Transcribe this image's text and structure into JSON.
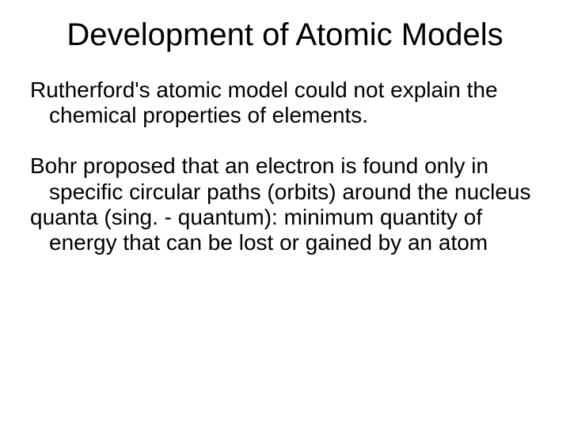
{
  "slide": {
    "title": "Development of Atomic Models",
    "paragraph1": "Rutherford's atomic model could not explain the chemical properties of elements.",
    "paragraph2": "Bohr proposed that an electron is found only in specific circular paths (orbits) around the nucleus",
    "paragraph3": "quanta (sing. - quantum): minimum quantity of energy that can be lost or gained by an atom",
    "background_color": "#ffffff",
    "text_color": "#000000",
    "title_fontsize": 40,
    "body_fontsize": 28,
    "font_family": "Arial"
  }
}
